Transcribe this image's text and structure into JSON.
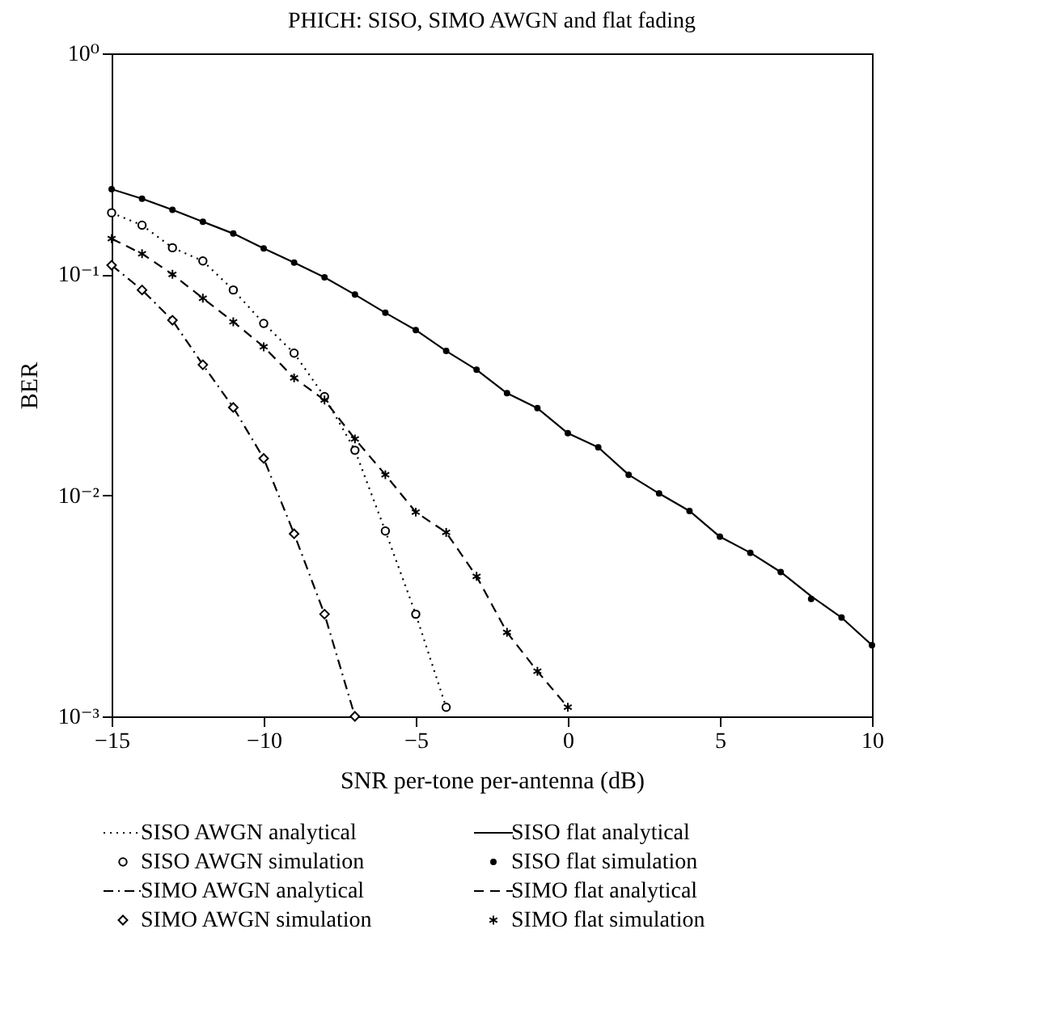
{
  "chart_data": {
    "type": "line",
    "title": "PHICH: SISO, SIMO AWGN and flat fading",
    "xlabel": "SNR per-tone per-antenna (dB)",
    "ylabel": "BER",
    "log": "y",
    "grid": false,
    "legend": "bottom",
    "xlim": [
      -15,
      10
    ],
    "xticks": [
      {
        "value": -15,
        "label": "−15"
      },
      {
        "value": -10,
        "label": "−10"
      },
      {
        "value": -5,
        "label": "−5"
      },
      0,
      5,
      10
    ],
    "ylim": [
      0.001,
      1
    ],
    "yticks": [
      {
        "value": 1,
        "label": "10⁰"
      },
      {
        "value": 0.1,
        "label": "10⁻¹"
      },
      {
        "value": 0.01,
        "label": "10⁻²"
      },
      {
        "value": 0.001,
        "label": "10⁻³"
      }
    ],
    "series": [
      {
        "name": "SISO AWGN analytical",
        "line_style": "dotted",
        "marker": "none",
        "color": "#000000",
        "x": [
          -15,
          -14,
          -13,
          -12,
          -11,
          -10,
          -9,
          -8,
          -7,
          -6,
          -5,
          -4
        ],
        "values": [
          0.19,
          0.167,
          0.132,
          0.115,
          0.085,
          0.06,
          0.044,
          0.028,
          0.016,
          0.0069,
          0.0029,
          0.0011
        ]
      },
      {
        "name": "SISO flat analytical",
        "line_style": "solid",
        "marker": "none",
        "color": "#000000",
        "x": [
          -15,
          -14,
          -13,
          -12,
          -11,
          -10,
          -9,
          -8,
          -7,
          -6,
          -5,
          -4,
          -3,
          -2,
          -1,
          0,
          1,
          2,
          3,
          4,
          5,
          6,
          7,
          8,
          9,
          10
        ],
        "values": [
          0.243,
          0.22,
          0.196,
          0.173,
          0.153,
          0.131,
          0.113,
          0.097,
          0.081,
          0.067,
          0.056,
          0.045,
          0.037,
          0.029,
          0.0248,
          0.0191,
          0.0165,
          0.0124,
          0.0102,
          0.0085,
          0.0065,
          0.0055,
          0.0045,
          0.0035,
          0.0028,
          0.0021
        ]
      },
      {
        "name": "SISO AWGN simulation",
        "type": "scatter",
        "marker": "circle",
        "color": "#000000",
        "x": [
          -15,
          -14,
          -13,
          -12,
          -11,
          -10,
          -9,
          -8,
          -7,
          -6,
          -5,
          -4
        ],
        "values": [
          0.19,
          0.167,
          0.132,
          0.115,
          0.085,
          0.06,
          0.044,
          0.028,
          0.016,
          0.0069,
          0.0029,
          0.0011
        ]
      },
      {
        "name": "SISO flat simulation",
        "type": "scatter",
        "marker": "dot",
        "color": "#000000",
        "x": [
          -15,
          -14,
          -13,
          -12,
          -11,
          -10,
          -9,
          -8,
          -7,
          -6,
          -5,
          -4,
          -3,
          -2,
          -1,
          0,
          1,
          2,
          3,
          4,
          5,
          6,
          7,
          8,
          9,
          10
        ],
        "values": [
          0.243,
          0.22,
          0.196,
          0.173,
          0.153,
          0.131,
          0.113,
          0.097,
          0.081,
          0.067,
          0.056,
          0.045,
          0.037,
          0.029,
          0.0248,
          0.0191,
          0.0165,
          0.0124,
          0.0102,
          0.0085,
          0.0065,
          0.0055,
          0.0045,
          0.0034,
          0.0028,
          0.0021
        ]
      },
      {
        "name": "SIMO AWGN analytical",
        "line_style": "dashdot",
        "marker": "none",
        "color": "#000000",
        "x": [
          -15,
          -14,
          -13,
          -12,
          -11,
          -10,
          -9,
          -8,
          -7
        ],
        "values": [
          0.11,
          0.085,
          0.062,
          0.039,
          0.025,
          0.0147,
          0.0067,
          0.0029,
          0.001
        ]
      },
      {
        "name": "SIMO flat analytical",
        "line_style": "dashed",
        "marker": "none",
        "color": "#000000",
        "x": [
          -15,
          -14,
          -13,
          -12,
          -11,
          -10,
          -9,
          -8,
          -7,
          -6,
          -5,
          -4,
          -3,
          -2,
          -1,
          0
        ],
        "values": [
          0.145,
          0.124,
          0.1,
          0.078,
          0.061,
          0.047,
          0.034,
          0.027,
          0.018,
          0.0124,
          0.0084,
          0.0068,
          0.0043,
          0.0024,
          0.0016,
          0.0011
        ]
      },
      {
        "name": "SIMO AWGN simulation",
        "type": "scatter",
        "marker": "diamond",
        "color": "#000000",
        "x": [
          -15,
          -14,
          -13,
          -12,
          -11,
          -10,
          -9,
          -8,
          -7
        ],
        "values": [
          0.11,
          0.085,
          0.062,
          0.039,
          0.025,
          0.0147,
          0.0067,
          0.0029,
          0.001
        ]
      },
      {
        "name": "SIMO flat simulation",
        "type": "scatter",
        "marker": "cross",
        "color": "#000000",
        "x": [
          -15,
          -14,
          -13,
          -12,
          -11,
          -10,
          -9,
          -8,
          -7,
          -6,
          -5,
          -4,
          -3,
          -2,
          -1,
          0
        ],
        "values": [
          0.145,
          0.124,
          0.1,
          0.078,
          0.061,
          0.047,
          0.034,
          0.027,
          0.018,
          0.0124,
          0.0084,
          0.0068,
          0.0043,
          0.0024,
          0.0016,
          0.0011
        ]
      }
    ]
  }
}
